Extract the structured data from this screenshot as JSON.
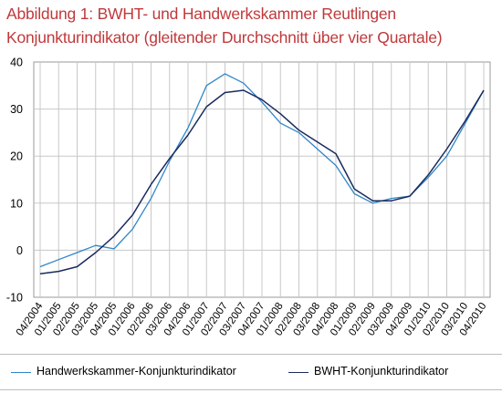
{
  "title_line1": "Abbildung 1: BWHT- und Handwerkskammer  Reutlingen",
  "title_line2": "Konjunkturindikator (gleitender Durchschnitt über vier Quartale)",
  "colors": {
    "title": "#c0393b",
    "series1": "#2f86c8",
    "series2": "#1a2a5e",
    "grid": "#c8c8c8"
  },
  "chart_data": {
    "type": "line",
    "x": [
      "04/2004",
      "01/2005",
      "02/2005",
      "03/2005",
      "04/2005",
      "01/2006",
      "02/2006",
      "03/2006",
      "04/2006",
      "01/2007",
      "02/2007",
      "03/2007",
      "04/2007",
      "01/2008",
      "02/2008",
      "03/2008",
      "04/2008",
      "01/2009",
      "02/2009",
      "03/2009",
      "04/2009",
      "01/2010",
      "02/2010",
      "03/2010",
      "04/2010"
    ],
    "series": [
      {
        "name": "Handwerkskammer-Konjunkturindikator",
        "values": [
          -3.5,
          -2.0,
          -0.5,
          1.0,
          0.3,
          4.5,
          11.0,
          19.0,
          26.0,
          35.0,
          37.5,
          35.5,
          31.5,
          27.0,
          25.0,
          21.5,
          18.0,
          12.0,
          10.0,
          11.0,
          11.5,
          15.5,
          20.0,
          27.0,
          34.0
        ]
      },
      {
        "name": "BWHT-Konjunkturindikator",
        "values": [
          -5.0,
          -4.5,
          -3.5,
          -0.5,
          3.0,
          7.5,
          14.0,
          19.5,
          24.5,
          30.5,
          33.5,
          34.0,
          32.0,
          29.0,
          25.5,
          23.0,
          20.5,
          13.0,
          10.5,
          10.5,
          11.5,
          16.0,
          21.5,
          27.5,
          34.0
        ]
      }
    ],
    "ylim": [
      -10,
      40
    ],
    "yticks": [
      -10,
      0,
      10,
      20,
      30,
      40
    ],
    "grid": true,
    "legend": "bottom"
  }
}
